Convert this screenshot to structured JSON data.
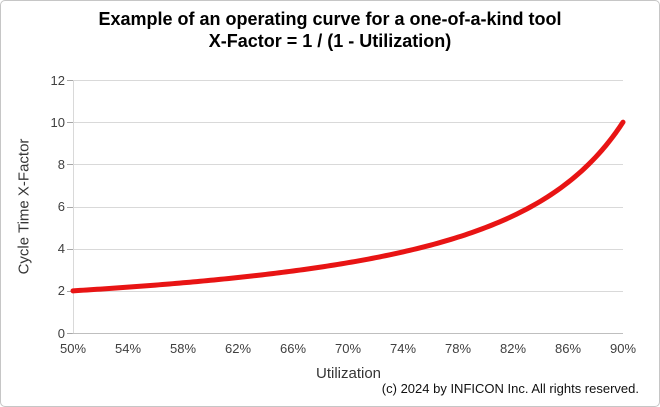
{
  "chart_data": {
    "type": "line",
    "title": "Example of an operating curve for a one-of-a-kind tool",
    "subtitle": "X-Factor = 1 / (1 - Utilization)",
    "xlabel": "Utilization",
    "ylabel": "Cycle Time X-Factor",
    "copyright": "(c) 2024 by INFICON Inc. All rights reserved.",
    "x_tick_labels": [
      "50%",
      "54%",
      "58%",
      "62%",
      "66%",
      "70%",
      "74%",
      "78%",
      "82%",
      "86%",
      "90%"
    ],
    "x_values_percent": [
      50,
      54,
      58,
      62,
      66,
      70,
      74,
      78,
      82,
      86,
      90
    ],
    "series": [
      {
        "name": "Cycle Time X-Factor",
        "formula": "x_factor = 1 / (1 - utilization)",
        "values": [
          2.0,
          2.17,
          2.38,
          2.63,
          2.94,
          3.33,
          3.85,
          4.55,
          5.56,
          7.14,
          10.0
        ],
        "color": "#e81414",
        "line_width": 5
      }
    ],
    "xlim_percent": [
      50,
      90
    ],
    "ylim": [
      0,
      12
    ],
    "yticks": [
      0,
      2,
      4,
      6,
      8,
      10,
      12
    ],
    "grid": "horizontal",
    "legend": "none",
    "styles": {
      "grid_color": "#d9d9d9",
      "axis_color": "#bfbfbf",
      "left_axis_color": "#d9d9d9",
      "tick_mark_color": "#a6a6a6",
      "tick_label_color": "#404040",
      "axis_title_color": "#363636",
      "title_color": "#000000",
      "background": "#ffffff",
      "border_color": "#c6c6c6"
    }
  }
}
